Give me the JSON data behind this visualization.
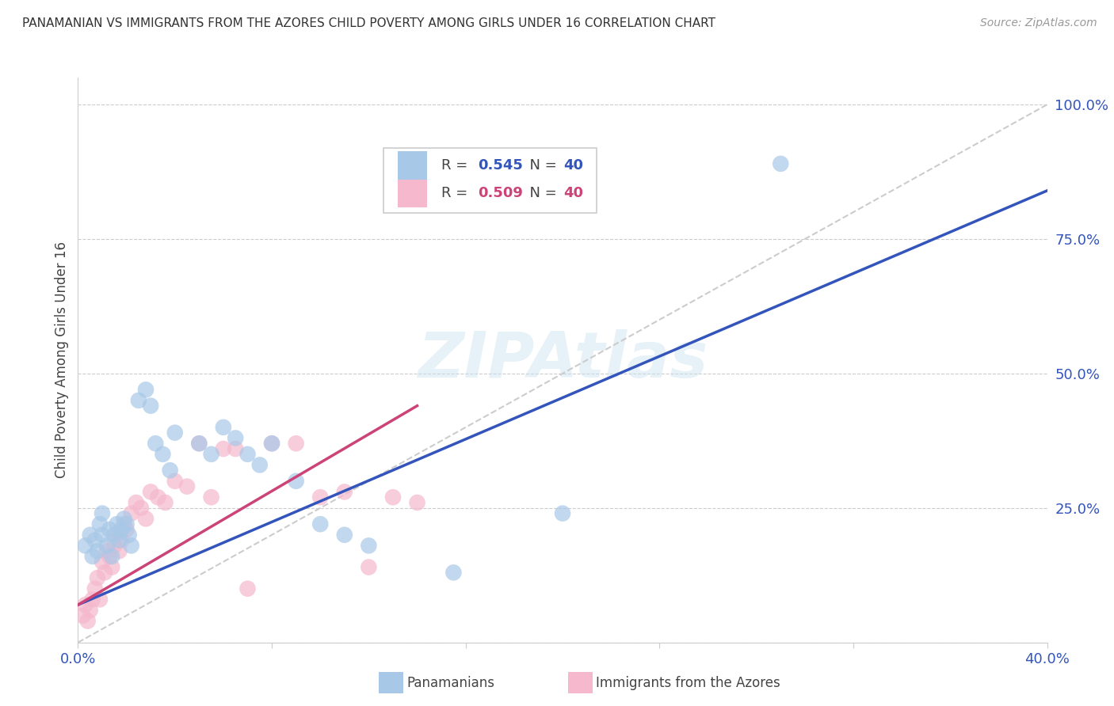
{
  "title": "PANAMANIAN VS IMMIGRANTS FROM THE AZORES CHILD POVERTY AMONG GIRLS UNDER 16 CORRELATION CHART",
  "source": "Source: ZipAtlas.com",
  "ylabel": "Child Poverty Among Girls Under 16",
  "xlim": [
    0.0,
    0.4
  ],
  "ylim": [
    0.0,
    1.05
  ],
  "x_ticks": [
    0.0,
    0.08,
    0.16,
    0.24,
    0.32,
    0.4
  ],
  "x_tick_labels": [
    "0.0%",
    "",
    "",
    "",
    "",
    "40.0%"
  ],
  "y_ticks": [
    0.0,
    0.25,
    0.5,
    0.75,
    1.0
  ],
  "y_tick_labels": [
    "",
    "25.0%",
    "50.0%",
    "75.0%",
    "100.0%"
  ],
  "watermark": "ZIPAtlas",
  "blue_color": "#a8c8e8",
  "pink_color": "#f5b8cc",
  "blue_line_color": "#3355bb",
  "pink_line_color": "#cc4477",
  "dashed_line_color": "#cccccc",
  "scatter_blue": {
    "x": [
      0.003,
      0.005,
      0.006,
      0.007,
      0.008,
      0.009,
      0.01,
      0.01,
      0.012,
      0.013,
      0.014,
      0.015,
      0.016,
      0.017,
      0.018,
      0.019,
      0.02,
      0.021,
      0.022,
      0.025,
      0.028,
      0.03,
      0.032,
      0.035,
      0.038,
      0.04,
      0.05,
      0.055,
      0.06,
      0.065,
      0.07,
      0.075,
      0.08,
      0.09,
      0.1,
      0.11,
      0.12,
      0.155,
      0.2,
      0.29
    ],
    "y": [
      0.18,
      0.2,
      0.16,
      0.19,
      0.17,
      0.22,
      0.2,
      0.24,
      0.18,
      0.21,
      0.16,
      0.2,
      0.22,
      0.19,
      0.21,
      0.23,
      0.22,
      0.2,
      0.18,
      0.45,
      0.47,
      0.44,
      0.37,
      0.35,
      0.32,
      0.39,
      0.37,
      0.35,
      0.4,
      0.38,
      0.35,
      0.33,
      0.37,
      0.3,
      0.22,
      0.2,
      0.18,
      0.13,
      0.24,
      0.89
    ]
  },
  "scatter_pink": {
    "x": [
      0.002,
      0.003,
      0.004,
      0.005,
      0.006,
      0.007,
      0.008,
      0.009,
      0.01,
      0.011,
      0.012,
      0.013,
      0.014,
      0.015,
      0.016,
      0.017,
      0.018,
      0.019,
      0.02,
      0.022,
      0.024,
      0.026,
      0.028,
      0.03,
      0.033,
      0.036,
      0.04,
      0.045,
      0.05,
      0.055,
      0.06,
      0.065,
      0.07,
      0.08,
      0.09,
      0.1,
      0.11,
      0.12,
      0.13,
      0.14
    ],
    "y": [
      0.05,
      0.07,
      0.04,
      0.06,
      0.08,
      0.1,
      0.12,
      0.08,
      0.15,
      0.13,
      0.17,
      0.16,
      0.14,
      0.18,
      0.2,
      0.17,
      0.19,
      0.22,
      0.21,
      0.24,
      0.26,
      0.25,
      0.23,
      0.28,
      0.27,
      0.26,
      0.3,
      0.29,
      0.37,
      0.27,
      0.36,
      0.36,
      0.1,
      0.37,
      0.37,
      0.27,
      0.28,
      0.14,
      0.27,
      0.26
    ]
  },
  "blue_line": {
    "x0": 0.0,
    "x1": 0.4,
    "y0": 0.07,
    "y1": 0.84
  },
  "pink_line": {
    "x0": 0.0,
    "x1": 0.14,
    "y0": 0.07,
    "y1": 0.44
  },
  "dashed_line": {
    "x0": 0.0,
    "x1": 0.4,
    "y0": 0.0,
    "y1": 1.0
  }
}
